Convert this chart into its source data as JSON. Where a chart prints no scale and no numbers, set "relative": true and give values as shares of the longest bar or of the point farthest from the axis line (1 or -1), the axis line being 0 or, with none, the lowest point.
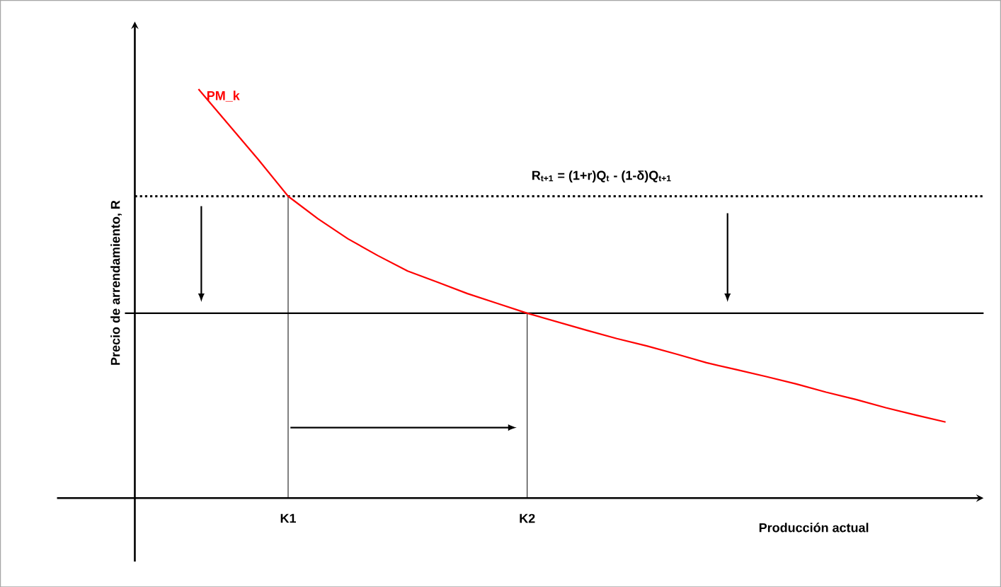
{
  "chart_data": {
    "type": "line",
    "relative": true,
    "xlabel": "Producción actual",
    "ylabel": "Precio de arrendamiento, R",
    "categories": [
      null,
      null,
      null,
      "K1",
      null,
      null,
      null,
      null,
      null,
      null,
      null,
      "K2",
      null,
      null,
      null,
      null,
      null,
      null,
      null,
      null,
      null,
      null,
      null,
      null,
      null,
      null
    ],
    "tick_labels": "x",
    "marker": "none",
    "series": [
      {
        "name": "PM_k",
        "color": "#ff0000",
        "values": [
          1.0,
          0.914,
          0.828,
          0.738,
          0.683,
          0.634,
          0.593,
          0.555,
          0.528,
          0.5,
          0.476,
          0.452,
          0.431,
          0.41,
          0.39,
          0.372,
          0.352,
          0.331,
          0.314,
          0.297,
          0.279,
          0.259,
          0.241,
          0.221,
          0.203,
          0.186
        ]
      }
    ],
    "ref_lines": [
      {
        "axis": "y",
        "value": 0.738,
        "label": "R$_{t+1}$ = (1+r)Q$_{t}$ - (1-δ)Q$_{t+1}$",
        "color": "#000000",
        "line_style": "dotted"
      },
      {
        "axis": "y",
        "value": 0.452,
        "color": "#000000",
        "line_style": "solid"
      },
      {
        "axis": "x",
        "value": "K1",
        "color": "#000000",
        "line_style": "solid"
      },
      {
        "axis": "x",
        "value": "K2",
        "color": "#000000",
        "line_style": "solid"
      }
    ]
  }
}
